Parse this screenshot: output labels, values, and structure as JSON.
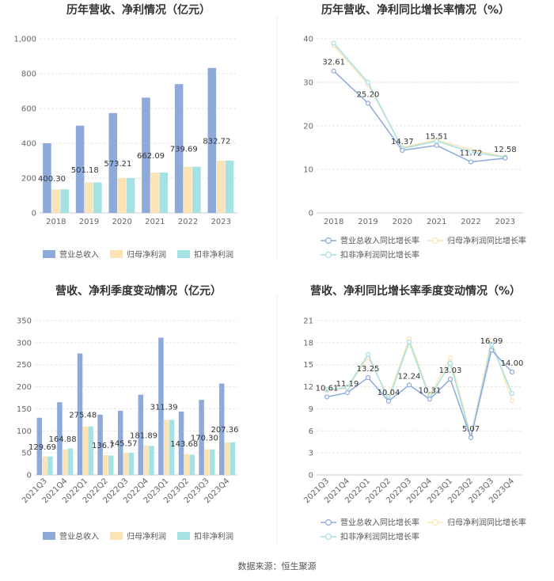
{
  "chart_data": [
    {
      "type": "bar",
      "title": "历年营收、净利情况（亿元）",
      "categories": [
        "2018",
        "2019",
        "2020",
        "2021",
        "2022",
        "2023"
      ],
      "series": [
        {
          "name": "营业总收入",
          "values": [
            400.3,
            501.18,
            573.21,
            662.09,
            739.69,
            832.72
          ],
          "color": "#8eaadb"
        },
        {
          "name": "归母净利润",
          "values": [
            135,
            175,
            200,
            232,
            265,
            300
          ],
          "color": "#fbe3b5"
        },
        {
          "name": "扣非净利润",
          "values": [
            135,
            175,
            200,
            232,
            265,
            300
          ],
          "color": "#a6e1e3"
        }
      ],
      "data_labels": [
        "400.30",
        "501.18",
        "573.21",
        "662.09",
        "739.69",
        "832.72"
      ],
      "yticks": [
        "0",
        "200",
        "400",
        "600",
        "800",
        "1,000"
      ],
      "ylim": [
        0,
        1000
      ],
      "legend": "bottom"
    },
    {
      "type": "line",
      "title": "历年营收、净利同比增长率情况（%）",
      "categories": [
        "2018",
        "2019",
        "2020",
        "2021",
        "2022",
        "2023"
      ],
      "series": [
        {
          "name": "营业总收入同比增长率",
          "values": [
            32.61,
            25.2,
            14.37,
            15.51,
            11.72,
            12.58
          ],
          "color": "#8eaadb"
        },
        {
          "name": "归母净利润同比增长率",
          "values": [
            38.5,
            29.5,
            15.0,
            16.8,
            14.5,
            12.9
          ],
          "color": "#fbe3b5"
        },
        {
          "name": "扣非净利润同比增长率",
          "values": [
            39.0,
            30.0,
            14.8,
            16.5,
            14.0,
            12.8
          ],
          "color": "#a6e1e3"
        }
      ],
      "data_labels": [
        "32.61",
        "25.20",
        "14.37",
        "15.51",
        "11.72",
        "12.58"
      ],
      "yticks": [
        "0",
        "10",
        "20",
        "30",
        "40"
      ],
      "ylim": [
        0,
        40
      ],
      "legend": "bottom"
    },
    {
      "type": "bar",
      "title": "营收、净利季度变动情况（亿元）",
      "categories": [
        "2021Q3",
        "2021Q4",
        "2022Q1",
        "2022Q2",
        "2022Q3",
        "2022Q4",
        "2023Q1",
        "2023Q2",
        "2023Q3",
        "2023Q4"
      ],
      "series": [
        {
          "name": "营业总收入",
          "values": [
            129.69,
            164.88,
            275.48,
            136.7,
            145.57,
            181.89,
            311.39,
            143.68,
            170.3,
            207.36
          ],
          "color": "#8eaadb"
        },
        {
          "name": "归母净利润",
          "values": [
            42,
            58,
            110,
            45,
            50,
            67,
            125,
            47,
            58,
            74
          ],
          "color": "#fbe3b5"
        },
        {
          "name": "扣非净利润",
          "values": [
            42,
            60,
            110,
            44,
            50,
            66,
            125,
            46,
            58,
            74
          ],
          "color": "#a6e1e3"
        }
      ],
      "data_labels": [
        "129.69",
        "164.88",
        "275.48",
        "136.7",
        "145.57",
        "181.89",
        "311.39",
        "143.68",
        "170.30",
        "207.36"
      ],
      "yticks": [
        "0",
        "50",
        "100",
        "150",
        "200",
        "250",
        "300",
        "350"
      ],
      "ylim": [
        0,
        350
      ],
      "legend": "bottom"
    },
    {
      "type": "line",
      "title": "营收、净利同比增长率季度变动情况（%）",
      "categories": [
        "2021Q3",
        "2021Q4",
        "2022Q1",
        "2022Q2",
        "2022Q3",
        "2022Q4",
        "2023Q1",
        "2023Q2",
        "2023Q3",
        "2023Q4"
      ],
      "series": [
        {
          "name": "营业总收入同比增长率",
          "values": [
            10.61,
            11.19,
            13.25,
            10.04,
            12.24,
            10.31,
            13.03,
            5.07,
            16.99,
            14.0
          ],
          "color": "#8eaadb"
        },
        {
          "name": "归母净利润同比增长率",
          "values": [
            11.5,
            11.8,
            16.0,
            10.6,
            18.5,
            10.8,
            15.9,
            5.3,
            18.3,
            10.1
          ],
          "color": "#fbe3b5"
        },
        {
          "name": "扣非净利润同比增长率",
          "values": [
            11.6,
            11.9,
            16.4,
            10.2,
            18.1,
            10.5,
            15.2,
            5.1,
            17.8,
            11.1
          ],
          "color": "#a6e1e3"
        }
      ],
      "data_labels": [
        "10.61",
        "11.19",
        "13.25",
        "10.04",
        "12.24",
        "10.31",
        "13.03",
        "5.07",
        "16.99",
        "14.00"
      ],
      "yticks": [
        "0",
        "3",
        "6",
        "9",
        "12",
        "15",
        "18",
        "21"
      ],
      "ylim": [
        0,
        21
      ],
      "legend": "bottom"
    }
  ],
  "footer": {
    "source": "数据来源：恒生聚源"
  }
}
